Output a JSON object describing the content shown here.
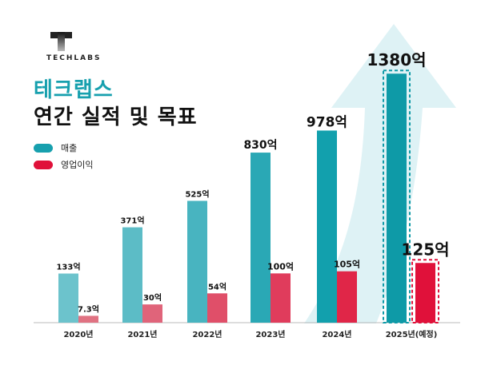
{
  "brand": {
    "name": "TECHLABS"
  },
  "title": {
    "line1": "테크랩스",
    "line2": "연간 실적 및 목표"
  },
  "colors": {
    "revenue": "#0e9aa7",
    "profit": "#e0113a",
    "arrow": "#def2f5",
    "title_accent": "#17a0ae"
  },
  "chart_data": {
    "type": "bar",
    "title": "테크랩스 연간 실적 및 목표",
    "xlabel": "",
    "ylabel": "",
    "categories": [
      "2020년",
      "2021년",
      "2022년",
      "2023년",
      "2024년",
      "2025년(예정)"
    ],
    "series": [
      {
        "name": "매출",
        "values": [
          133,
          371,
          525,
          830,
          978,
          1380
        ],
        "labels": [
          "133억",
          "371억",
          "525억",
          "830억",
          "978억",
          "1380억"
        ]
      },
      {
        "name": "영업이익",
        "values": [
          7.3,
          30,
          54,
          100,
          105,
          125
        ],
        "labels": [
          "7.3억",
          "30억",
          "54억",
          "100억",
          "105억",
          "125억"
        ]
      }
    ],
    "unit": "억",
    "projected_category": "2025년(예정)",
    "legend": "top-left",
    "grid": false
  }
}
